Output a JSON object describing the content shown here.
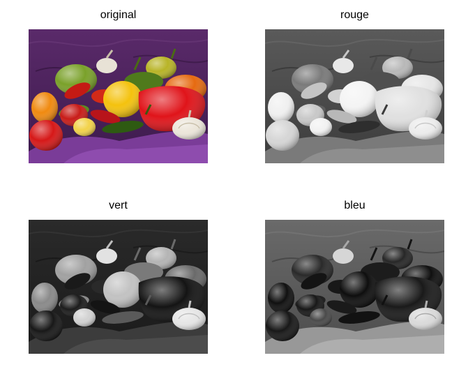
{
  "figure": {
    "panels": [
      {
        "id": "original",
        "title": "original",
        "mode": "color"
      },
      {
        "id": "rouge",
        "title": "rouge",
        "mode": "red-channel"
      },
      {
        "id": "vert",
        "title": "vert",
        "mode": "green-channel"
      },
      {
        "id": "bleu",
        "title": "bleu",
        "mode": "blue-channel"
      }
    ]
  }
}
